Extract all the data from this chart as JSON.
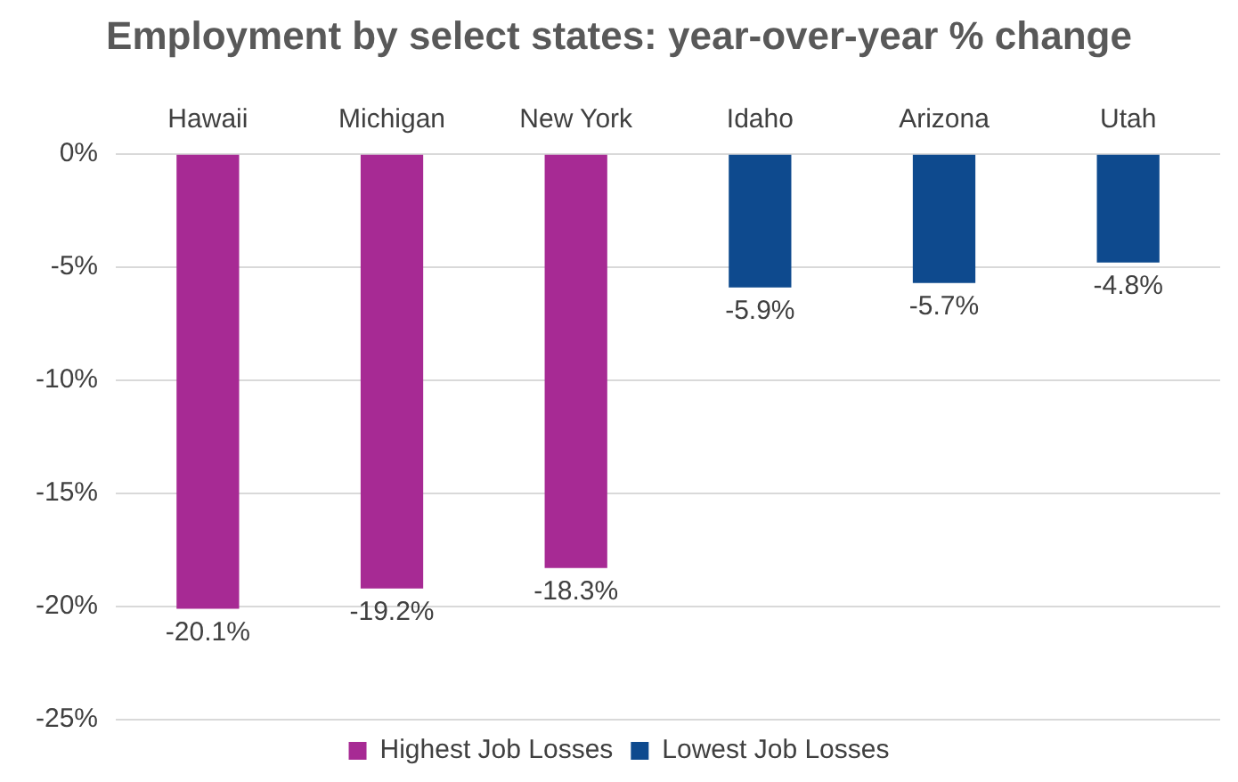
{
  "chart_data": {
    "type": "bar",
    "title": "Employment by select states: year-over-year % change",
    "categories": [
      "Hawaii",
      "Michigan",
      "New York",
      "Idaho",
      "Arizona",
      "Utah"
    ],
    "series": [
      {
        "name": "Highest Job Losses",
        "color": "#a72a94",
        "values": [
          -20.1,
          -19.2,
          -18.3,
          null,
          null,
          null
        ],
        "value_labels": [
          "-20.1%",
          "-19.2%",
          "-18.3%",
          null,
          null,
          null
        ]
      },
      {
        "name": "Lowest Job Losses",
        "color": "#0e4a8e",
        "values": [
          null,
          null,
          null,
          -5.9,
          -5.7,
          -4.8
        ],
        "value_labels": [
          null,
          null,
          null,
          "-5.9%",
          "-5.7%",
          "-4.8%"
        ]
      }
    ],
    "ylim": [
      -25,
      0
    ],
    "yticks": [
      {
        "value": 0,
        "label": "0%"
      },
      {
        "value": -5,
        "label": "-5%"
      },
      {
        "value": -10,
        "label": "-10%"
      },
      {
        "value": -15,
        "label": "-15%"
      },
      {
        "value": -20,
        "label": "-20%"
      },
      {
        "value": -25,
        "label": "-25%"
      }
    ],
    "grid": "y",
    "legend": "bottom"
  }
}
